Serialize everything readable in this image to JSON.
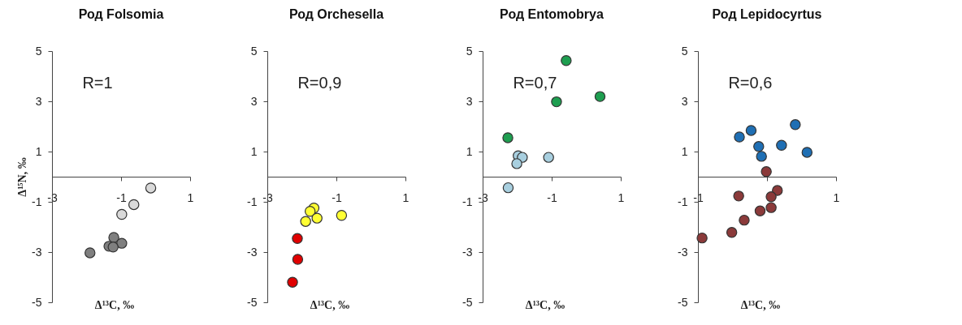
{
  "chart_data": [
    {
      "type": "scatter",
      "title": "Род Folsomia",
      "xlabel": "Δ¹³C, ‰",
      "ylabel": "Δ¹⁵N, ‰",
      "annotations": [
        "R=1"
      ],
      "marker": "circle",
      "xlim": [
        -3,
        1
      ],
      "ylim": [
        -5,
        5
      ],
      "xticks": [
        -3,
        -1,
        1
      ],
      "yticks": [
        -5,
        -3,
        -1,
        1,
        3,
        5
      ],
      "series": [
        {
          "color": "#d9d9d9",
          "x": [
            -0.14,
            -0.63,
            -0.98
          ],
          "values": [
            -0.45,
            -1.11,
            -1.5
          ]
        },
        {
          "color": "#7f7f7f",
          "x": [
            -1.21,
            -1.35,
            -0.98,
            -1.23,
            -1.9
          ],
          "values": [
            -2.42,
            -2.77,
            -2.65,
            -2.8,
            -3.03
          ]
        }
      ]
    },
    {
      "type": "scatter",
      "title": "Род Orchesella",
      "xlabel": "Δ¹³C, ‰",
      "annotations": [
        "R=0,9"
      ],
      "marker": "circle",
      "xlim": [
        -3,
        1
      ],
      "ylim": [
        -5,
        5
      ],
      "xticks": [
        -3,
        -1,
        1
      ],
      "yticks": [
        -5,
        -3,
        -1,
        1,
        3,
        5
      ],
      "series": [
        {
          "color": "#ffff33",
          "x": [
            -1.65,
            -1.76,
            -1.56,
            -1.89,
            -0.85
          ],
          "values": [
            -1.25,
            -1.38,
            -1.65,
            -1.78,
            -1.54
          ]
        },
        {
          "color": "#e00000",
          "x": [
            -2.13,
            -2.12,
            -2.27
          ],
          "values": [
            -2.46,
            -3.29,
            -4.2
          ]
        }
      ]
    },
    {
      "type": "scatter",
      "title": "Род Entomobrya",
      "xlabel": "Δ¹³C, ‰",
      "annotations": [
        "R=0,7"
      ],
      "marker": "circle",
      "xlim": [
        -3,
        1
      ],
      "ylim": [
        -5,
        5
      ],
      "xticks": [
        -3,
        -1,
        1
      ],
      "yticks": [
        -5,
        -3,
        -1,
        1,
        3,
        5
      ],
      "series": [
        {
          "color": "#1e9e50",
          "x": [
            -0.58,
            -0.86,
            0.4,
            -2.27
          ],
          "values": [
            4.62,
            2.98,
            3.19,
            1.55
          ]
        },
        {
          "color": "#a8cfdf",
          "x": [
            -1.97,
            -1.85,
            -2.01,
            -1.09,
            -2.26
          ],
          "values": [
            0.83,
            0.77,
            0.52,
            0.77,
            -0.44
          ]
        }
      ]
    },
    {
      "type": "scatter",
      "title": "Род Lepidocyrtus",
      "xlabel": "Δ¹³C, ‰",
      "annotations": [
        "R=0,6"
      ],
      "marker": "circle",
      "xlim": [
        -1,
        1
      ],
      "ylim": [
        -5,
        5
      ],
      "xticks": [
        -1,
        {
          "value": 0,
          "label": null
        },
        1
      ],
      "yticks": [
        -5,
        -3,
        -1,
        1,
        3,
        5
      ],
      "series": [
        {
          "color": "#1f6fb4",
          "x": [
            -0.4,
            -0.23,
            -0.12,
            -0.08,
            0.21,
            0.41,
            0.58
          ],
          "values": [
            1.58,
            1.84,
            1.2,
            0.81,
            1.25,
            2.07,
            0.97
          ]
        },
        {
          "color": "#8b3a3a",
          "x": [
            -0.01,
            0.15,
            0.06,
            0.06,
            -0.1,
            -0.41,
            -0.33,
            -0.51,
            -0.94
          ],
          "values": [
            0.2,
            -0.55,
            -0.8,
            -1.23,
            -1.36,
            -0.77,
            -1.73,
            -2.22,
            -2.44
          ]
        }
      ]
    }
  ]
}
